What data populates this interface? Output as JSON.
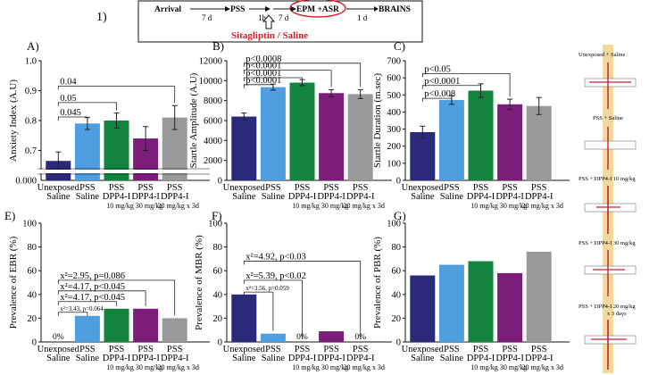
{
  "protocol": {
    "label": "1)",
    "steps": [
      "Arrival",
      "PSS",
      "EPM +ASR",
      "BRAINS"
    ],
    "intervals": [
      "7 d",
      "1h",
      "7 d",
      "1 d"
    ],
    "treatment": "Sitagliptin / Saline"
  },
  "colors": {
    "unexposed": "#2b2a78",
    "pss_saline": "#4f9ee0",
    "dpp4_10": "#12843e",
    "dpp4_30": "#7c1d7c",
    "dpp4_20x3d": "#999999",
    "treatment_red": "#d4202a",
    "outline": "#d4202a"
  },
  "group_labels": [
    [
      "Unexposed",
      "Saline"
    ],
    [
      "PSS",
      "Saline"
    ],
    [
      "PSS",
      "DPP4-I",
      "10 mg/kg"
    ],
    [
      "PSS",
      "DPP4-I",
      "30 mg/kg"
    ],
    [
      "PSS",
      "DPP4-I",
      "20 mg/kg x 3d"
    ]
  ],
  "traces": {
    "labels": [
      "Unexposed + Saline",
      "PSS + Saline",
      "PSS + DPP4-I  10 mg/kg",
      "PSS + DPP4-I  30 mg/kg",
      "PSS + DPP4-I  20 mg/kg",
      "x 3 days"
    ]
  },
  "chart_data": [
    {
      "panel": "A)",
      "type": "bar",
      "ylabel": "Anxiety Index (A.U)",
      "ylim": [
        0.6,
        1.0
      ],
      "ybreak": true,
      "yticks": [
        0.7,
        0.8,
        0.9,
        1.0
      ],
      "ytick_labels": [
        "0.7",
        "0.8",
        "0.9",
        "1.0"
      ],
      "baseline_label": "0.000",
      "values": [
        0.665,
        0.79,
        0.8,
        0.74,
        0.81
      ],
      "errors": [
        0.03,
        0.02,
        0.025,
        0.04,
        0.04
      ],
      "pct_labels": [
        "",
        "",
        "",
        "",
        ""
      ],
      "annotations": [
        {
          "text": "0.045",
          "from": 0,
          "to": 1,
          "level": 0.812
        },
        {
          "text": "0.05",
          "from": 0,
          "to": 2,
          "level": 0.86
        },
        {
          "text": "0.04",
          "from": 0,
          "to": 4,
          "level": 0.915
        }
      ]
    },
    {
      "panel": "B)",
      "type": "bar",
      "ylabel": "Startle Amplitude (A.U)",
      "ylim": [
        0,
        12000
      ],
      "yticks": [
        0,
        2000,
        4000,
        6000,
        8000,
        10000,
        12000
      ],
      "ytick_labels": [
        "0",
        "2000",
        "4000",
        "6000",
        "8000",
        "10000",
        "12000"
      ],
      "values": [
        6400,
        9350,
        9800,
        8750,
        8650
      ],
      "errors": [
        350,
        300,
        300,
        350,
        450
      ],
      "pct_labels": [
        "",
        "",
        "",
        "",
        ""
      ],
      "annotations": [
        {
          "text": "p<0.0001",
          "from": 0,
          "to": 1,
          "level": 9600
        },
        {
          "text": "p<0.0001",
          "from": 0,
          "to": 2,
          "level": 10300
        },
        {
          "text": "p<0.0001",
          "from": 0,
          "to": 3,
          "level": 11050
        },
        {
          "text": "p<0.0008",
          "from": 0,
          "to": 4,
          "level": 11750
        }
      ]
    },
    {
      "panel": "C)",
      "type": "bar",
      "ylabel": "Startle Duration (m.sec)",
      "ylim": [
        0,
        700
      ],
      "yticks": [
        0,
        100,
        200,
        300,
        400,
        500,
        600,
        700
      ],
      "ytick_labels": [
        "0",
        "100",
        "200",
        "300",
        "400",
        "500",
        "600",
        "700"
      ],
      "values": [
        282,
        470,
        525,
        445,
        435
      ],
      "errors": [
        35,
        25,
        40,
        30,
        50
      ],
      "pct_labels": [
        "",
        "",
        "",
        "",
        ""
      ],
      "annotations": [
        {
          "text": "p<0.008",
          "from": 0,
          "to": 1,
          "level": 480
        },
        {
          "text": "p<0.0001",
          "from": 0,
          "to": 2,
          "level": 555
        },
        {
          "text": "p<0.05",
          "from": 0,
          "to": 3,
          "level": 625
        }
      ]
    },
    {
      "panel": "E)",
      "type": "bar",
      "ylabel": "Prevalence of EBR (%)",
      "ylim": [
        0,
        100
      ],
      "yticks": [
        0,
        20,
        40,
        60,
        80,
        100
      ],
      "ytick_labels": [
        "0",
        "20",
        "40",
        "60",
        "80",
        "100"
      ],
      "values": [
        0,
        22,
        28,
        28,
        20
      ],
      "errors": [
        0,
        0,
        0,
        0,
        0
      ],
      "pct_labels": [
        "0%",
        "",
        "",
        "",
        ""
      ],
      "annotations": [
        {
          "text": "x²=3.43, p=0.064",
          "from": 0,
          "to": 1,
          "level": 25,
          "small": true
        },
        {
          "text": "x²=4.17, p<0.045",
          "from": 0,
          "to": 2,
          "level": 34
        },
        {
          "text": "x²=4.17, p<0.045",
          "from": 0,
          "to": 3,
          "level": 43
        },
        {
          "text": "x²=2.95, p=0.086",
          "from": 0,
          "to": 4,
          "level": 52
        }
      ]
    },
    {
      "panel": "F)",
      "type": "bar",
      "ylabel": "Prevalence of MBR (%)",
      "ylim": [
        0,
        100
      ],
      "yticks": [
        0,
        20,
        40,
        60,
        80,
        100
      ],
      "ytick_labels": [
        "0",
        "20",
        "40",
        "60",
        "80",
        "100"
      ],
      "values": [
        40,
        7,
        0,
        9,
        0
      ],
      "errors": [
        0,
        0,
        0,
        0,
        0
      ],
      "pct_labels": [
        "",
        "",
        "0%",
        "",
        "0%"
      ],
      "annotations": [
        {
          "text": "x²=3.56, p=0.059",
          "from": 0,
          "to": 1,
          "level": 42,
          "small": true
        },
        {
          "text": "x²=5.39, p<0.02",
          "from": 0,
          "to": 2,
          "level": 52
        },
        {
          "text": "x²=4.92, p<0.03",
          "from": 0,
          "to": 4,
          "level": 68
        }
      ]
    },
    {
      "panel": "G)",
      "type": "bar",
      "ylabel": "Prevalence of PBR (%)",
      "ylim": [
        0,
        100
      ],
      "yticks": [
        0,
        20,
        40,
        60,
        80,
        100
      ],
      "ytick_labels": [
        "0",
        "20",
        "40",
        "60",
        "80",
        "100"
      ],
      "values": [
        56,
        65,
        68,
        58,
        76
      ],
      "errors": [
        0,
        0,
        0,
        0,
        0
      ],
      "pct_labels": [
        "",
        "",
        "",
        "",
        ""
      ],
      "annotations": []
    }
  ]
}
